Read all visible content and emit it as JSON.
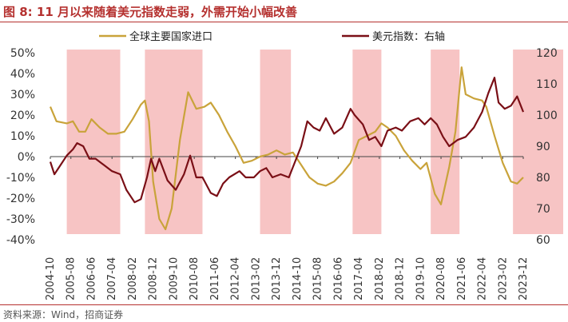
{
  "header": {
    "title": "图 8:  11 月以来随着美元指数走弱，外需开始小幅改善"
  },
  "footer": {
    "source": "资料来源：Wind，招商证券"
  },
  "chart_data": {
    "type": "line",
    "title": "图 8:  11 月以来随着美元指数走弱，外需开始小幅改善",
    "xlabel": "",
    "x_tick_labels": [
      "2004-10",
      "2005-08",
      "2006-06",
      "2007-04",
      "2008-02",
      "2008-12",
      "2009-10",
      "2010-08",
      "2011-06",
      "2012-04",
      "2013-02",
      "2013-12",
      "2014-10",
      "2015-08",
      "2016-06",
      "2017-04",
      "2018-02",
      "2018-12",
      "2019-10",
      "2020-08",
      "2021-06",
      "2022-04",
      "2023-02",
      "2023-12"
    ],
    "x_range": [
      "2004-10",
      "2023-12"
    ],
    "y_left": {
      "ticks": [
        "50%",
        "40%",
        "30%",
        "20%",
        "10%",
        "0%",
        "-10%",
        "-20%",
        "-30%",
        "-40%"
      ],
      "ylim": [
        -40,
        50
      ],
      "unit": "%"
    },
    "y_right": {
      "ticks": [
        "120",
        "110",
        "100",
        "90",
        "80",
        "70",
        "60"
      ],
      "ylim": [
        60,
        120
      ]
    },
    "legend_position": "top",
    "shaded_periods": [
      {
        "start": "2005-06",
        "end": "2007-08"
      },
      {
        "start": "2008-08",
        "end": "2010-12"
      },
      {
        "start": "2013-04",
        "end": "2014-07"
      },
      {
        "start": "2017-01",
        "end": "2018-03"
      },
      {
        "start": "2020-03",
        "end": "2021-05"
      },
      {
        "start": "2023-07",
        "end": "2023-12"
      }
    ],
    "series": [
      {
        "name": "全球主要国家进口",
        "axis": "left",
        "color": "#c9a33a",
        "points": [
          [
            "2004-10",
            24
          ],
          [
            "2005-01",
            17
          ],
          [
            "2005-06",
            16
          ],
          [
            "2005-09",
            17
          ],
          [
            "2005-12",
            12
          ],
          [
            "2006-03",
            12
          ],
          [
            "2006-06",
            18
          ],
          [
            "2006-10",
            14
          ],
          [
            "2007-02",
            11
          ],
          [
            "2007-06",
            11
          ],
          [
            "2007-10",
            12
          ],
          [
            "2008-02",
            18
          ],
          [
            "2008-06",
            25
          ],
          [
            "2008-08",
            27
          ],
          [
            "2008-10",
            17
          ],
          [
            "2008-12",
            -12
          ],
          [
            "2009-03",
            -30
          ],
          [
            "2009-06",
            -35
          ],
          [
            "2009-09",
            -25
          ],
          [
            "2010-01",
            8
          ],
          [
            "2010-05",
            31
          ],
          [
            "2010-09",
            23
          ],
          [
            "2011-01",
            24
          ],
          [
            "2011-04",
            26
          ],
          [
            "2011-08",
            20
          ],
          [
            "2011-12",
            12
          ],
          [
            "2012-04",
            5
          ],
          [
            "2012-08",
            -3
          ],
          [
            "2012-12",
            -2
          ],
          [
            "2013-04",
            0
          ],
          [
            "2013-08",
            1
          ],
          [
            "2013-12",
            3
          ],
          [
            "2014-04",
            1
          ],
          [
            "2014-08",
            2
          ],
          [
            "2014-12",
            -4
          ],
          [
            "2015-04",
            -10
          ],
          [
            "2015-08",
            -13
          ],
          [
            "2015-12",
            -14
          ],
          [
            "2016-04",
            -12
          ],
          [
            "2016-08",
            -8
          ],
          [
            "2016-12",
            -3
          ],
          [
            "2017-04",
            8
          ],
          [
            "2017-08",
            10
          ],
          [
            "2017-12",
            12
          ],
          [
            "2018-03",
            16
          ],
          [
            "2018-06",
            14
          ],
          [
            "2018-10",
            10
          ],
          [
            "2019-02",
            3
          ],
          [
            "2019-06",
            -2
          ],
          [
            "2019-10",
            -6
          ],
          [
            "2020-01",
            -3
          ],
          [
            "2020-05",
            -18
          ],
          [
            "2020-08",
            -23
          ],
          [
            "2020-12",
            -5
          ],
          [
            "2021-03",
            12
          ],
          [
            "2021-06",
            43
          ],
          [
            "2021-08",
            30
          ],
          [
            "2021-12",
            28
          ],
          [
            "2022-04",
            27
          ],
          [
            "2022-06",
            24
          ],
          [
            "2022-10",
            10
          ],
          [
            "2023-02",
            -3
          ],
          [
            "2023-06",
            -12
          ],
          [
            "2023-09",
            -13
          ],
          [
            "2023-12",
            -10
          ]
        ]
      },
      {
        "name": "美元指数：右轴",
        "axis": "right",
        "color": "#7a0f16",
        "points": [
          [
            "2004-10",
            85
          ],
          [
            "2004-12",
            81
          ],
          [
            "2005-03",
            84
          ],
          [
            "2005-06",
            87
          ],
          [
            "2005-09",
            89
          ],
          [
            "2005-11",
            91
          ],
          [
            "2006-02",
            90
          ],
          [
            "2006-05",
            86
          ],
          [
            "2006-08",
            86
          ],
          [
            "2006-12",
            84
          ],
          [
            "2007-04",
            82
          ],
          [
            "2007-08",
            81
          ],
          [
            "2007-11",
            76
          ],
          [
            "2008-03",
            72
          ],
          [
            "2008-06",
            73
          ],
          [
            "2008-09",
            80
          ],
          [
            "2008-11",
            86
          ],
          [
            "2009-01",
            82
          ],
          [
            "2009-03",
            86
          ],
          [
            "2009-07",
            79
          ],
          [
            "2009-11",
            76
          ],
          [
            "2010-03",
            81
          ],
          [
            "2010-06",
            87
          ],
          [
            "2010-09",
            80
          ],
          [
            "2010-12",
            80
          ],
          [
            "2011-04",
            75
          ],
          [
            "2011-07",
            74
          ],
          [
            "2011-10",
            78
          ],
          [
            "2012-01",
            80
          ],
          [
            "2012-06",
            82
          ],
          [
            "2012-09",
            80
          ],
          [
            "2013-01",
            80
          ],
          [
            "2013-04",
            82
          ],
          [
            "2013-07",
            83
          ],
          [
            "2013-10",
            80
          ],
          [
            "2014-02",
            81
          ],
          [
            "2014-06",
            80
          ],
          [
            "2014-09",
            85
          ],
          [
            "2014-12",
            90
          ],
          [
            "2015-03",
            98
          ],
          [
            "2015-06",
            96
          ],
          [
            "2015-09",
            95
          ],
          [
            "2015-12",
            99
          ],
          [
            "2016-04",
            94
          ],
          [
            "2016-08",
            96
          ],
          [
            "2016-12",
            102
          ],
          [
            "2017-02",
            100
          ],
          [
            "2017-06",
            97
          ],
          [
            "2017-09",
            92
          ],
          [
            "2017-12",
            93
          ],
          [
            "2018-03",
            90
          ],
          [
            "2018-06",
            95
          ],
          [
            "2018-10",
            96
          ],
          [
            "2019-01",
            95
          ],
          [
            "2019-05",
            98
          ],
          [
            "2019-09",
            99
          ],
          [
            "2019-12",
            97
          ],
          [
            "2020-03",
            99
          ],
          [
            "2020-06",
            97
          ],
          [
            "2020-09",
            93
          ],
          [
            "2020-12",
            90
          ],
          [
            "2021-04",
            92
          ],
          [
            "2021-08",
            93
          ],
          [
            "2021-12",
            96
          ],
          [
            "2022-04",
            101
          ],
          [
            "2022-07",
            107
          ],
          [
            "2022-10",
            112
          ],
          [
            "2022-12",
            104
          ],
          [
            "2023-03",
            102
          ],
          [
            "2023-06",
            103
          ],
          [
            "2023-09",
            106
          ],
          [
            "2023-12",
            101
          ]
        ]
      }
    ]
  }
}
